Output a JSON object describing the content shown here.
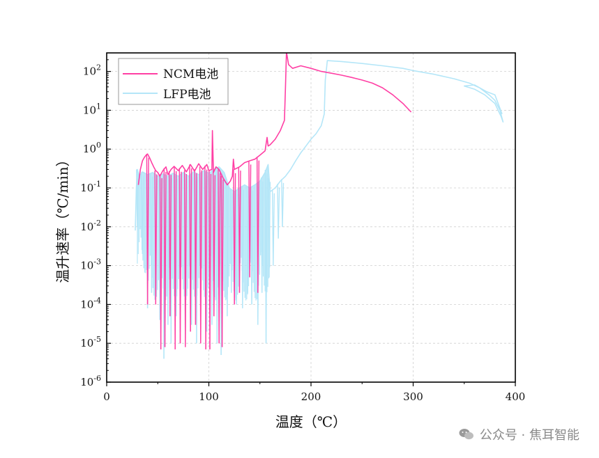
{
  "chart_data": {
    "type": "line",
    "title": "",
    "xlabel": "温度（℃）",
    "ylabel": "温升速率（℃/min）",
    "xlim": [
      0,
      400
    ],
    "ylim": [
      1e-06,
      300
    ],
    "yscale": "log",
    "grid": true,
    "legend_position": "top-left",
    "x_ticks": [
      "0",
      "100",
      "200",
      "300",
      "400"
    ],
    "y_ticks": [
      {
        "base": "10",
        "exp": "-6"
      },
      {
        "base": "10",
        "exp": "-5"
      },
      {
        "base": "10",
        "exp": "-4"
      },
      {
        "base": "10",
        "exp": "-3"
      },
      {
        "base": "10",
        "exp": "-2"
      },
      {
        "base": "10",
        "exp": "-1"
      },
      {
        "base": "10",
        "exp": "0"
      },
      {
        "base": "10",
        "exp": "1"
      },
      {
        "base": "10",
        "exp": "2"
      }
    ],
    "series": [
      {
        "name": "NCM电池",
        "color": "#ff3fa4",
        "points": [
          [
            31,
            0.12
          ],
          [
            33,
            0.3
          ],
          [
            35,
            0.5
          ],
          [
            37,
            0.62
          ],
          [
            39,
            0.72
          ],
          [
            40,
            0.75
          ],
          [
            42,
            0.6
          ],
          [
            44,
            0.45
          ],
          [
            46,
            0.35
          ],
          [
            48,
            0.28
          ],
          [
            50,
            0.25
          ],
          [
            52,
            0.2
          ],
          [
            55,
            0.28
          ],
          [
            58,
            0.35
          ],
          [
            60,
            0.22
          ],
          [
            63,
            0.3
          ],
          [
            66,
            0.36
          ],
          [
            70,
            0.28
          ],
          [
            74,
            0.38
          ],
          [
            78,
            0.26
          ],
          [
            82,
            0.4
          ],
          [
            86,
            0.27
          ],
          [
            90,
            0.42
          ],
          [
            94,
            0.3
          ],
          [
            98,
            0.4
          ],
          [
            100,
            0.28
          ],
          [
            103,
            0.3
          ],
          [
            103.5,
            3.0
          ],
          [
            104.5,
            0.25
          ],
          [
            107,
            0.35
          ],
          [
            110,
            0.3
          ],
          [
            114,
            0.18
          ],
          [
            118,
            0.12
          ],
          [
            121,
            0.15
          ],
          [
            123,
            0.2
          ],
          [
            124,
            0.55
          ],
          [
            125,
            0.3
          ],
          [
            130,
            0.35
          ],
          [
            135,
            0.45
          ],
          [
            140,
            0.5
          ],
          [
            145,
            0.55
          ],
          [
            150,
            0.7
          ],
          [
            155,
            0.9
          ],
          [
            157,
            2.0
          ],
          [
            158,
            1.2
          ],
          [
            160,
            1.3
          ],
          [
            165,
            1.8
          ],
          [
            170,
            3.0
          ],
          [
            174,
            5.5
          ],
          [
            175,
            40
          ],
          [
            176,
            320
          ],
          [
            178,
            150
          ],
          [
            182,
            120
          ],
          [
            190,
            140
          ],
          [
            200,
            120
          ],
          [
            210,
            100
          ],
          [
            220,
            90
          ],
          [
            230,
            80
          ],
          [
            240,
            70
          ],
          [
            250,
            60
          ],
          [
            260,
            50
          ],
          [
            270,
            38
          ],
          [
            280,
            25
          ],
          [
            290,
            15
          ],
          [
            298,
            9
          ]
        ],
        "minima": [
          [
            40,
            0.0001
          ],
          [
            48,
            0.0001
          ],
          [
            53,
            7e-06
          ],
          [
            57,
            8e-06
          ],
          [
            62,
            5e-05
          ],
          [
            67,
            7e-06
          ],
          [
            72,
            1e-05
          ],
          [
            77,
            8e-06
          ],
          [
            82,
            2e-05
          ],
          [
            87,
            3e-05
          ],
          [
            92,
            1e-05
          ],
          [
            97,
            7e-06
          ],
          [
            101,
            7e-06
          ],
          [
            105,
            5e-05
          ],
          [
            110,
            1e-05
          ],
          [
            113,
            8e-06
          ],
          [
            125,
            0.0001
          ],
          [
            130,
            0.0002
          ],
          [
            140,
            0.0005
          ],
          [
            148,
            0.0002
          ]
        ]
      },
      {
        "name": "LFP电池",
        "color": "#b4e6f8",
        "points": [
          [
            28,
            0.008
          ],
          [
            29,
            0.1
          ],
          [
            30,
            0.3
          ],
          [
            32,
            0.2
          ],
          [
            35,
            0.26
          ],
          [
            40,
            0.22
          ],
          [
            45,
            0.25
          ],
          [
            50,
            0.2
          ],
          [
            55,
            0.23
          ],
          [
            60,
            0.2
          ],
          [
            65,
            0.24
          ],
          [
            70,
            0.2
          ],
          [
            75,
            0.25
          ],
          [
            80,
            0.2
          ],
          [
            85,
            0.26
          ],
          [
            90,
            0.22
          ],
          [
            95,
            0.28
          ],
          [
            100,
            0.24
          ],
          [
            105,
            0.3
          ],
          [
            110,
            0.35
          ],
          [
            115,
            0.25
          ],
          [
            120,
            0.1
          ],
          [
            125,
            0.08
          ],
          [
            130,
            0.1
          ],
          [
            135,
            0.12
          ],
          [
            140,
            0.1
          ],
          [
            145,
            0.12
          ],
          [
            150,
            0.15
          ],
          [
            155,
            0.25
          ],
          [
            158,
            0.4
          ],
          [
            160,
            0.08
          ],
          [
            165,
            0.1
          ],
          [
            170,
            0.15
          ],
          [
            175,
            0.2
          ],
          [
            180,
            0.3
          ],
          [
            185,
            0.5
          ],
          [
            190,
            0.8
          ],
          [
            195,
            1.2
          ],
          [
            200,
            1.8
          ],
          [
            205,
            2.5
          ],
          [
            210,
            4.0
          ],
          [
            213,
            8
          ],
          [
            214,
            60
          ],
          [
            216,
            190
          ],
          [
            230,
            180
          ],
          [
            250,
            160
          ],
          [
            270,
            140
          ],
          [
            290,
            120
          ],
          [
            300,
            105
          ],
          [
            320,
            85
          ],
          [
            340,
            65
          ],
          [
            355,
            50
          ],
          [
            365,
            38
          ],
          [
            375,
            24
          ],
          [
            380,
            18
          ],
          [
            385,
            10
          ],
          [
            388,
            5
          ],
          [
            386,
            7
          ],
          [
            380,
            15
          ],
          [
            370,
            25
          ],
          [
            360,
            35
          ],
          [
            350,
            42
          ],
          [
            360,
            45
          ],
          [
            372,
            30
          ],
          [
            380,
            25
          ],
          [
            387,
            8
          ]
        ],
        "minima": [
          [
            30,
            0.01
          ],
          [
            35,
            0.002
          ],
          [
            40,
            8e-05
          ],
          [
            44,
            0.0002
          ],
          [
            48,
            0.0003
          ],
          [
            52,
            4e-05
          ],
          [
            56,
            4e-06
          ],
          [
            60,
            3e-05
          ],
          [
            63,
            1e-05
          ],
          [
            68,
            5e-05
          ],
          [
            72,
            2e-05
          ],
          [
            77,
            1e-05
          ],
          [
            83,
            3e-05
          ],
          [
            88,
            1e-05
          ],
          [
            92,
            4e-05
          ],
          [
            98,
            2e-05
          ],
          [
            103,
            3e-05
          ],
          [
            108,
            1e-05
          ],
          [
            112,
            5e-06
          ],
          [
            118,
            5e-05
          ],
          [
            122,
            0.0002
          ],
          [
            127,
            0.0001
          ],
          [
            133,
            8e-05
          ],
          [
            138,
            0.0002
          ],
          [
            142,
            0.0001
          ],
          [
            148,
            3e-05
          ],
          [
            152,
            0.0002
          ],
          [
            156,
            1e-05
          ],
          [
            159,
            0.0005
          ],
          [
            163,
            0.001
          ],
          [
            168,
            0.005
          ],
          [
            172,
            0.01
          ]
        ]
      }
    ]
  },
  "watermark": {
    "text": "公众号 · 焦耳智能",
    "icon": "wechat-icon"
  }
}
